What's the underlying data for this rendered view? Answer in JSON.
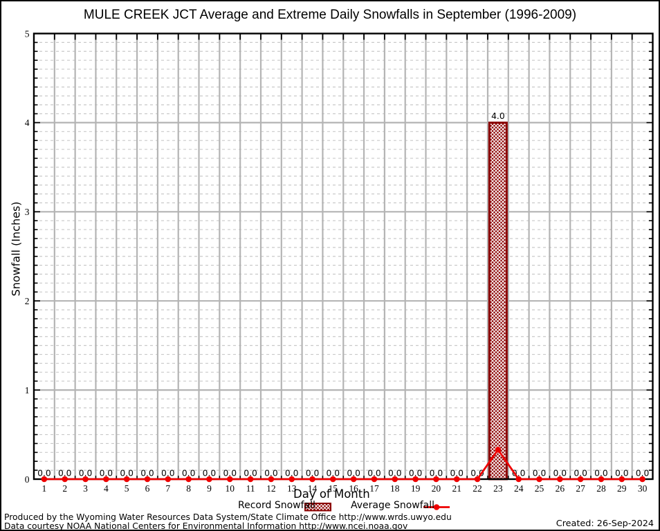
{
  "chart_data": {
    "type": "bar",
    "title": "MULE CREEK JCT Average and Extreme Daily Snowfalls in September (1996-2009)",
    "xlabel": "Day of Month",
    "ylabel": "Snowfall (Inches)",
    "ylim": [
      0,
      5
    ],
    "y_ticks": [
      "0",
      "1",
      "2",
      "3",
      "4",
      "5"
    ],
    "y_minor_step": 0.1,
    "grid": "major solid gray + minor dashed gray, full box border",
    "legend_position": "below x-axis label, centered",
    "categories": [
      "1",
      "2",
      "3",
      "4",
      "5",
      "6",
      "7",
      "8",
      "9",
      "10",
      "11",
      "12",
      "13",
      "14",
      "15",
      "16",
      "17",
      "18",
      "19",
      "20",
      "21",
      "22",
      "23",
      "24",
      "25",
      "26",
      "27",
      "28",
      "29",
      "30"
    ],
    "series": [
      {
        "name": "Record Snowfall",
        "type": "bar",
        "values": [
          0,
          0,
          0,
          0,
          0,
          0,
          0,
          0,
          0,
          0,
          0,
          0,
          0,
          0,
          0,
          0,
          0,
          0,
          0,
          0,
          0,
          0,
          4.0,
          0,
          0,
          0,
          0,
          0,
          0,
          0
        ],
        "value_labels": [
          "0.0",
          "0.0",
          "0.0",
          "0.0",
          "0.0",
          "0.0",
          "0.0",
          "0.0",
          "0.0",
          "0.0",
          "0.0",
          "0.0",
          "0.0",
          "0.0",
          "0.0",
          "0.0",
          "0.0",
          "0.0",
          "0.0",
          "0.0",
          "0.0",
          "0.0",
          "4.0",
          "0.0",
          "0.0",
          "0.0",
          "0.0",
          "0.0",
          "0.0",
          "0.0"
        ]
      },
      {
        "name": "Average Snowfall",
        "type": "line",
        "values": [
          0,
          0,
          0,
          0,
          0,
          0,
          0,
          0,
          0,
          0,
          0,
          0,
          0,
          0,
          0,
          0,
          0,
          0,
          0,
          0,
          0,
          0,
          0.33,
          0,
          0,
          0,
          0,
          0,
          0,
          0
        ]
      }
    ],
    "colors": {
      "record": "#8b0000",
      "record_hatch": "#ffffff",
      "average": "#ee0000",
      "grid_major": "#b4b4b4",
      "grid_minor": "#c9c9c9",
      "axis": "#000000"
    }
  },
  "footer": {
    "line1": "Produced by the Wyoming Water Resources Data System/State Climate Office http://www.wrds.uwyo.edu",
    "line2": "Data courtesy NOAA National Centers for Environmental Information http://www.ncei.noaa.gov",
    "created": "Created: 26-Sep-2024"
  }
}
